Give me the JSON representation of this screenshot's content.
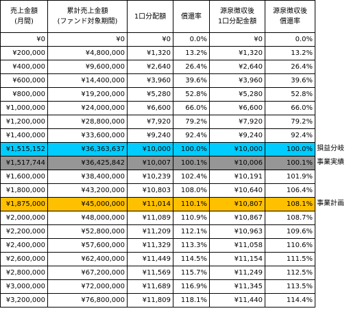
{
  "headers": [
    [
      "売上金額",
      "(月間)"
    ],
    [
      "累計売上金額",
      "(ファンド対象期間)"
    ],
    [
      "1口分配額"
    ],
    [
      "償還率"
    ],
    [
      "源泉徴収後",
      "1口分配金額"
    ],
    [
      "源泉徴収後",
      "償還率"
    ]
  ],
  "rows": [
    {
      "cells": [
        "¥0",
        "¥0",
        "¥0",
        "0.0%",
        "¥0",
        "0.0%"
      ],
      "highlight": "",
      "label": ""
    },
    {
      "cells": [
        "¥200,000",
        "¥4,800,000",
        "¥1,320",
        "13.2%",
        "¥1,320",
        "13.2%"
      ],
      "highlight": "",
      "label": ""
    },
    {
      "cells": [
        "¥400,000",
        "¥9,600,000",
        "¥2,640",
        "26.4%",
        "¥2,640",
        "26.4%"
      ],
      "highlight": "",
      "label": ""
    },
    {
      "cells": [
        "¥600,000",
        "¥14,400,000",
        "¥3,960",
        "39.6%",
        "¥3,960",
        "39.6%"
      ],
      "highlight": "",
      "label": ""
    },
    {
      "cells": [
        "¥800,000",
        "¥19,200,000",
        "¥5,280",
        "52.8%",
        "¥5,280",
        "52.8%"
      ],
      "highlight": "",
      "label": ""
    },
    {
      "cells": [
        "¥1,000,000",
        "¥24,000,000",
        "¥6,600",
        "66.0%",
        "¥6,600",
        "66.0%"
      ],
      "highlight": "",
      "label": ""
    },
    {
      "cells": [
        "¥1,200,000",
        "¥28,800,000",
        "¥7,920",
        "79.2%",
        "¥7,920",
        "79.2%"
      ],
      "highlight": "",
      "label": ""
    },
    {
      "cells": [
        "¥1,400,000",
        "¥33,600,000",
        "¥9,240",
        "92.4%",
        "¥9,240",
        "92.4%"
      ],
      "highlight": "",
      "label": ""
    },
    {
      "cells": [
        "¥1,515,152",
        "¥36,363,637",
        "¥10,000",
        "100.0%",
        "¥10,000",
        "100.0%"
      ],
      "highlight": "cyan",
      "label": "損益分岐"
    },
    {
      "cells": [
        "¥1,517,744",
        "¥36,425,842",
        "¥10,007",
        "100.1%",
        "¥10,006",
        "100.1%"
      ],
      "highlight": "gray",
      "label": "事業実績"
    },
    {
      "cells": [
        "¥1,600,000",
        "¥38,400,000",
        "¥10,239",
        "102.4%",
        "¥10,191",
        "101.9%"
      ],
      "highlight": "",
      "label": ""
    },
    {
      "cells": [
        "¥1,800,000",
        "¥43,200,000",
        "¥10,803",
        "108.0%",
        "¥10,640",
        "106.4%"
      ],
      "highlight": "",
      "label": ""
    },
    {
      "cells": [
        "¥1,875,000",
        "¥45,000,000",
        "¥11,014",
        "110.1%",
        "¥10,807",
        "108.1%"
      ],
      "highlight": "orange",
      "label": "事業計画"
    },
    {
      "cells": [
        "¥2,000,000",
        "¥48,000,000",
        "¥11,089",
        "110.9%",
        "¥10,867",
        "108.7%"
      ],
      "highlight": "",
      "label": ""
    },
    {
      "cells": [
        "¥2,200,000",
        "¥52,800,000",
        "¥11,209",
        "112.1%",
        "¥10,963",
        "109.6%"
      ],
      "highlight": "",
      "label": ""
    },
    {
      "cells": [
        "¥2,400,000",
        "¥57,600,000",
        "¥11,329",
        "113.3%",
        "¥11,058",
        "110.6%"
      ],
      "highlight": "",
      "label": ""
    },
    {
      "cells": [
        "¥2,600,000",
        "¥62,400,000",
        "¥11,449",
        "114.5%",
        "¥11,154",
        "111.5%"
      ],
      "highlight": "",
      "label": ""
    },
    {
      "cells": [
        "¥2,800,000",
        "¥67,200,000",
        "¥11,569",
        "115.7%",
        "¥11,249",
        "112.5%"
      ],
      "highlight": "",
      "label": ""
    },
    {
      "cells": [
        "¥3,000,000",
        "¥72,000,000",
        "¥11,689",
        "116.9%",
        "¥11,345",
        "113.5%"
      ],
      "highlight": "",
      "label": ""
    },
    {
      "cells": [
        "¥3,200,000",
        "¥76,800,000",
        "¥11,809",
        "118.1%",
        "¥11,440",
        "114.4%"
      ],
      "highlight": "",
      "label": ""
    }
  ],
  "colors": {
    "cyan": "#00ccff",
    "gray": "#969696",
    "orange": "#ffc000"
  }
}
